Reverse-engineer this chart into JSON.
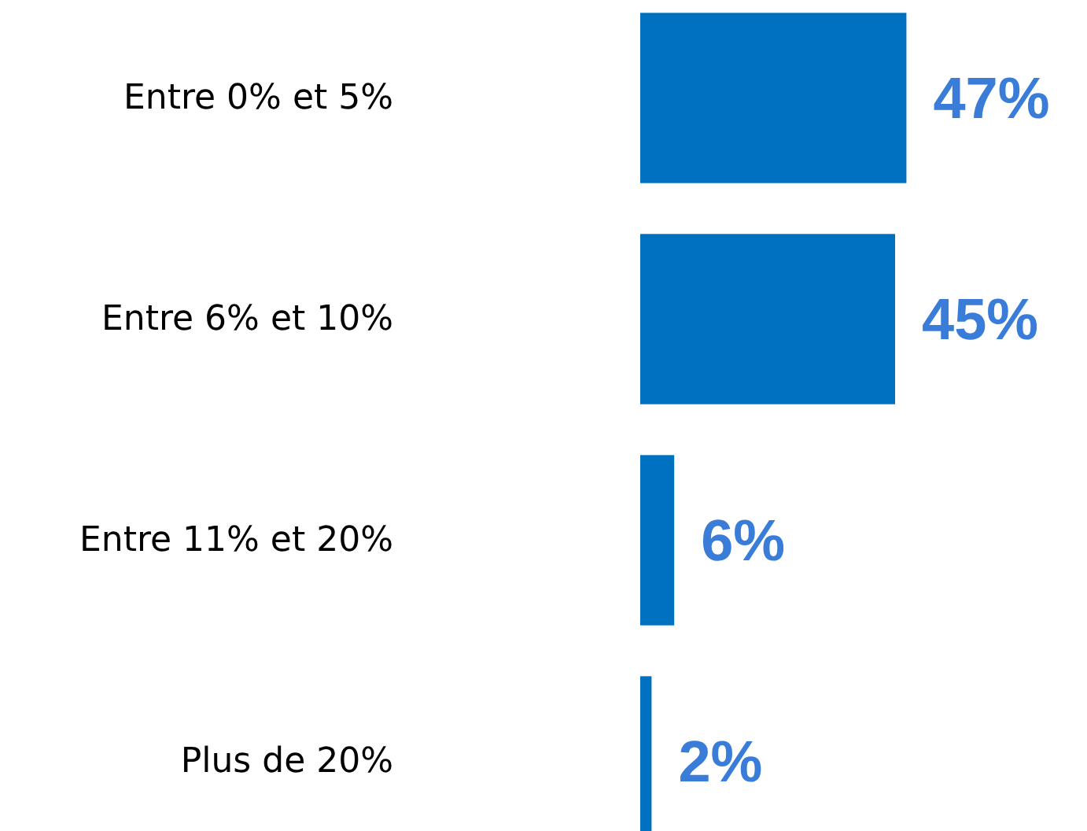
{
  "chart_data": {
    "type": "bar",
    "orientation": "horizontal",
    "categories": [
      "Entre 0% et 5%",
      "Entre 6% et 10%",
      "Entre 11% et 20%",
      "Plus de 20%"
    ],
    "values": [
      47,
      45,
      6,
      2
    ],
    "value_labels": [
      "47%",
      "45%",
      "6%",
      "2%"
    ],
    "color": "#0070c0"
  }
}
